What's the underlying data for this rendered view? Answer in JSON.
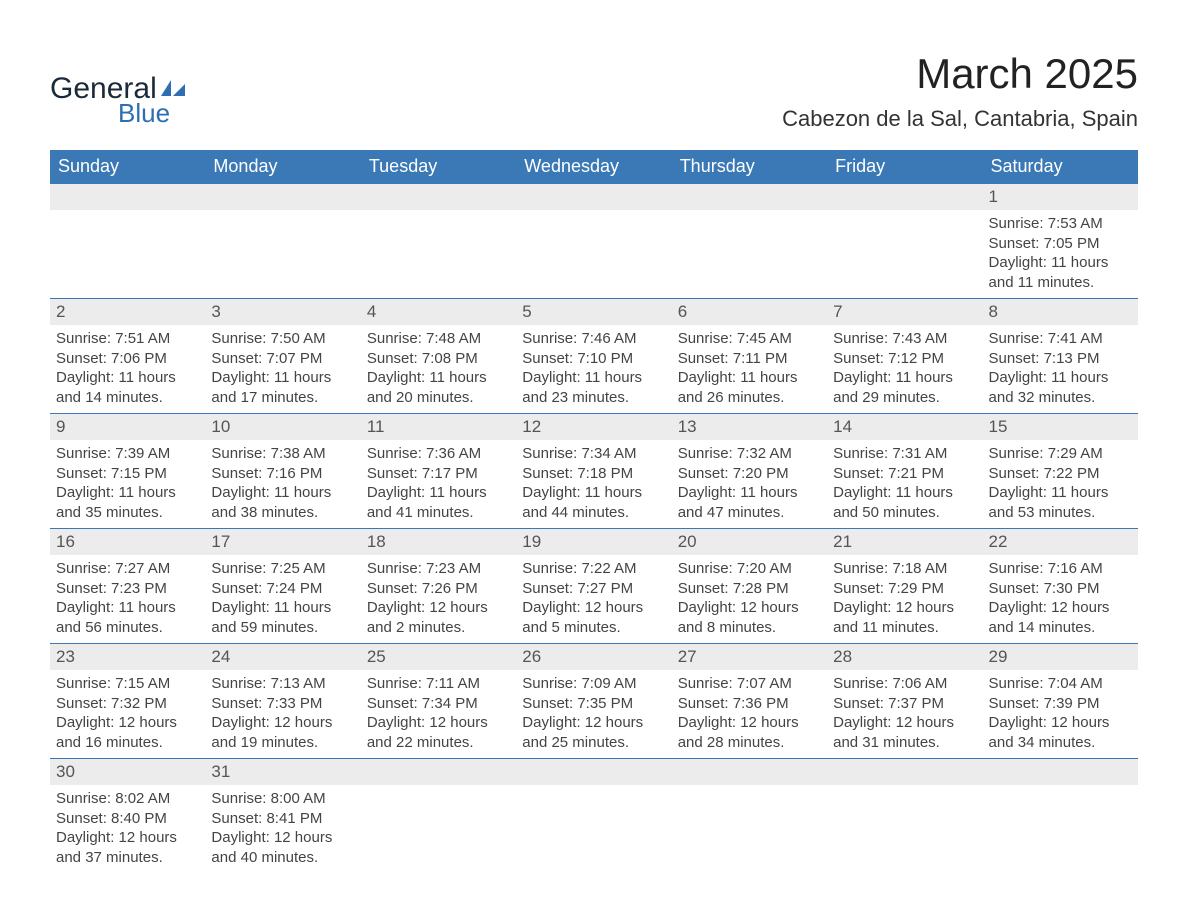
{
  "brand": {
    "general": "General",
    "blue": "Blue"
  },
  "title": "March 2025",
  "location": "Cabezon de la Sal, Cantabria, Spain",
  "colors": {
    "header_bg": "#3a78b6",
    "header_text": "#ffffff",
    "daynum_bg": "#ececec",
    "text": "#444444",
    "border": "#3a78b6",
    "logo_dark": "#1a2a3a",
    "logo_blue": "#2d6fb0"
  },
  "typography": {
    "title_fontsize": 42,
    "location_fontsize": 22,
    "header_fontsize": 18,
    "daynum_fontsize": 17,
    "body_fontsize": 15
  },
  "calendar": {
    "type": "table",
    "month": "March",
    "year": 2025,
    "start_weekday": "Sunday",
    "columns": [
      "Sunday",
      "Monday",
      "Tuesday",
      "Wednesday",
      "Thursday",
      "Friday",
      "Saturday"
    ],
    "weeks": [
      [
        null,
        null,
        null,
        null,
        null,
        null,
        {
          "n": 1,
          "sunrise": "7:53 AM",
          "sunset": "7:05 PM",
          "daylight": "11 hours and 11 minutes."
        }
      ],
      [
        {
          "n": 2,
          "sunrise": "7:51 AM",
          "sunset": "7:06 PM",
          "daylight": "11 hours and 14 minutes."
        },
        {
          "n": 3,
          "sunrise": "7:50 AM",
          "sunset": "7:07 PM",
          "daylight": "11 hours and 17 minutes."
        },
        {
          "n": 4,
          "sunrise": "7:48 AM",
          "sunset": "7:08 PM",
          "daylight": "11 hours and 20 minutes."
        },
        {
          "n": 5,
          "sunrise": "7:46 AM",
          "sunset": "7:10 PM",
          "daylight": "11 hours and 23 minutes."
        },
        {
          "n": 6,
          "sunrise": "7:45 AM",
          "sunset": "7:11 PM",
          "daylight": "11 hours and 26 minutes."
        },
        {
          "n": 7,
          "sunrise": "7:43 AM",
          "sunset": "7:12 PM",
          "daylight": "11 hours and 29 minutes."
        },
        {
          "n": 8,
          "sunrise": "7:41 AM",
          "sunset": "7:13 PM",
          "daylight": "11 hours and 32 minutes."
        }
      ],
      [
        {
          "n": 9,
          "sunrise": "7:39 AM",
          "sunset": "7:15 PM",
          "daylight": "11 hours and 35 minutes."
        },
        {
          "n": 10,
          "sunrise": "7:38 AM",
          "sunset": "7:16 PM",
          "daylight": "11 hours and 38 minutes."
        },
        {
          "n": 11,
          "sunrise": "7:36 AM",
          "sunset": "7:17 PM",
          "daylight": "11 hours and 41 minutes."
        },
        {
          "n": 12,
          "sunrise": "7:34 AM",
          "sunset": "7:18 PM",
          "daylight": "11 hours and 44 minutes."
        },
        {
          "n": 13,
          "sunrise": "7:32 AM",
          "sunset": "7:20 PM",
          "daylight": "11 hours and 47 minutes."
        },
        {
          "n": 14,
          "sunrise": "7:31 AM",
          "sunset": "7:21 PM",
          "daylight": "11 hours and 50 minutes."
        },
        {
          "n": 15,
          "sunrise": "7:29 AM",
          "sunset": "7:22 PM",
          "daylight": "11 hours and 53 minutes."
        }
      ],
      [
        {
          "n": 16,
          "sunrise": "7:27 AM",
          "sunset": "7:23 PM",
          "daylight": "11 hours and 56 minutes."
        },
        {
          "n": 17,
          "sunrise": "7:25 AM",
          "sunset": "7:24 PM",
          "daylight": "11 hours and 59 minutes."
        },
        {
          "n": 18,
          "sunrise": "7:23 AM",
          "sunset": "7:26 PM",
          "daylight": "12 hours and 2 minutes."
        },
        {
          "n": 19,
          "sunrise": "7:22 AM",
          "sunset": "7:27 PM",
          "daylight": "12 hours and 5 minutes."
        },
        {
          "n": 20,
          "sunrise": "7:20 AM",
          "sunset": "7:28 PM",
          "daylight": "12 hours and 8 minutes."
        },
        {
          "n": 21,
          "sunrise": "7:18 AM",
          "sunset": "7:29 PM",
          "daylight": "12 hours and 11 minutes."
        },
        {
          "n": 22,
          "sunrise": "7:16 AM",
          "sunset": "7:30 PM",
          "daylight": "12 hours and 14 minutes."
        }
      ],
      [
        {
          "n": 23,
          "sunrise": "7:15 AM",
          "sunset": "7:32 PM",
          "daylight": "12 hours and 16 minutes."
        },
        {
          "n": 24,
          "sunrise": "7:13 AM",
          "sunset": "7:33 PM",
          "daylight": "12 hours and 19 minutes."
        },
        {
          "n": 25,
          "sunrise": "7:11 AM",
          "sunset": "7:34 PM",
          "daylight": "12 hours and 22 minutes."
        },
        {
          "n": 26,
          "sunrise": "7:09 AM",
          "sunset": "7:35 PM",
          "daylight": "12 hours and 25 minutes."
        },
        {
          "n": 27,
          "sunrise": "7:07 AM",
          "sunset": "7:36 PM",
          "daylight": "12 hours and 28 minutes."
        },
        {
          "n": 28,
          "sunrise": "7:06 AM",
          "sunset": "7:37 PM",
          "daylight": "12 hours and 31 minutes."
        },
        {
          "n": 29,
          "sunrise": "7:04 AM",
          "sunset": "7:39 PM",
          "daylight": "12 hours and 34 minutes."
        }
      ],
      [
        {
          "n": 30,
          "sunrise": "8:02 AM",
          "sunset": "8:40 PM",
          "daylight": "12 hours and 37 minutes."
        },
        {
          "n": 31,
          "sunrise": "8:00 AM",
          "sunset": "8:41 PM",
          "daylight": "12 hours and 40 minutes."
        },
        null,
        null,
        null,
        null,
        null
      ]
    ],
    "labels": {
      "sunrise_prefix": "Sunrise: ",
      "sunset_prefix": "Sunset: ",
      "daylight_prefix": "Daylight: "
    }
  }
}
